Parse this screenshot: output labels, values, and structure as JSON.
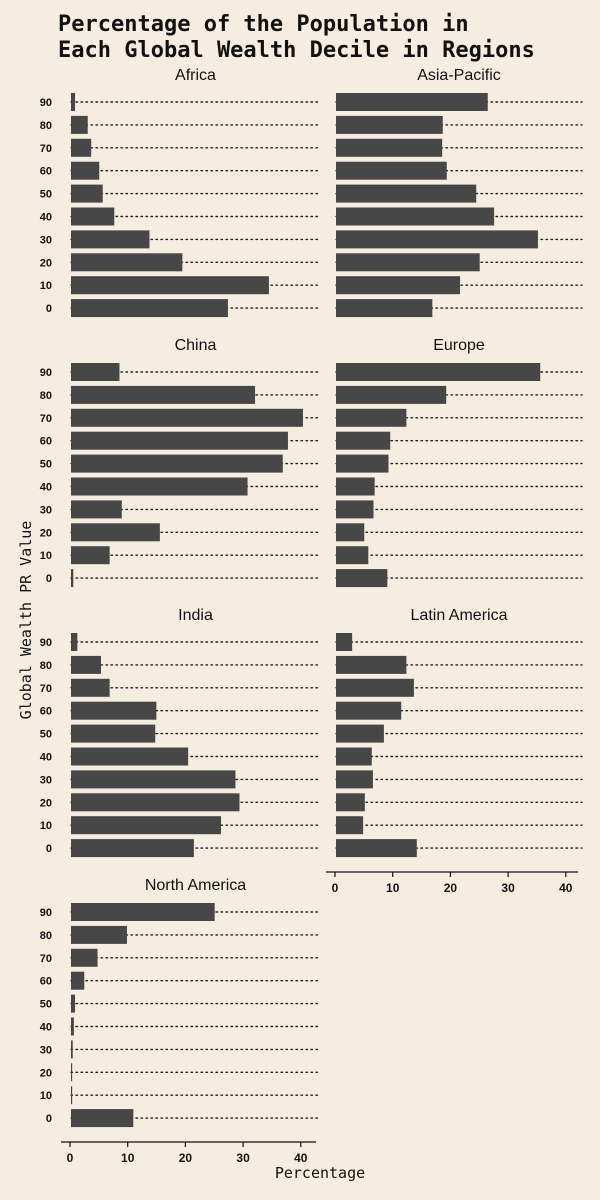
{
  "chart_data": {
    "type": "bar",
    "title": "Percentage of the Population in\nEach Global Wealth Decile in Regions",
    "xlabel": "Percentage",
    "ylabel": "Global Wealth PR Value",
    "categories": [
      "0",
      "10",
      "20",
      "30",
      "40",
      "50",
      "60",
      "70",
      "80",
      "90"
    ],
    "xlim": [
      0,
      43
    ],
    "xticks": [
      "0",
      "10",
      "20",
      "30",
      "40"
    ],
    "grid": "dotted row guides",
    "bar_color": "#474747",
    "background": "#f5eddf",
    "panels": [
      {
        "name": "Africa",
        "values": [
          27.2,
          34.3,
          19.3,
          13.6,
          7.5,
          5.5,
          4.9,
          3.5,
          2.9,
          0.7
        ]
      },
      {
        "name": "Asia-Pacific",
        "values": [
          16.7,
          21.5,
          24.9,
          35.0,
          27.4,
          24.3,
          19.2,
          18.4,
          18.5,
          26.3
        ]
      },
      {
        "name": "China",
        "values": [
          0.4,
          6.7,
          15.4,
          8.8,
          30.6,
          36.7,
          37.6,
          40.2,
          31.9,
          8.4
        ]
      },
      {
        "name": "Europe",
        "values": [
          8.9,
          5.6,
          4.9,
          6.5,
          6.7,
          9.1,
          9.4,
          12.2,
          19.1,
          35.4
        ]
      },
      {
        "name": "India",
        "values": [
          21.3,
          26.0,
          29.2,
          28.5,
          20.3,
          14.6,
          14.8,
          6.7,
          5.2,
          1.1
        ]
      },
      {
        "name": "Latin America",
        "values": [
          14.0,
          4.7,
          5.0,
          6.4,
          6.2,
          8.3,
          11.3,
          13.5,
          12.2,
          2.8
        ]
      },
      {
        "name": "North America",
        "values": [
          10.8,
          0.2,
          0.2,
          0.3,
          0.5,
          0.7,
          2.3,
          4.6,
          9.7,
          24.9
        ]
      }
    ]
  }
}
